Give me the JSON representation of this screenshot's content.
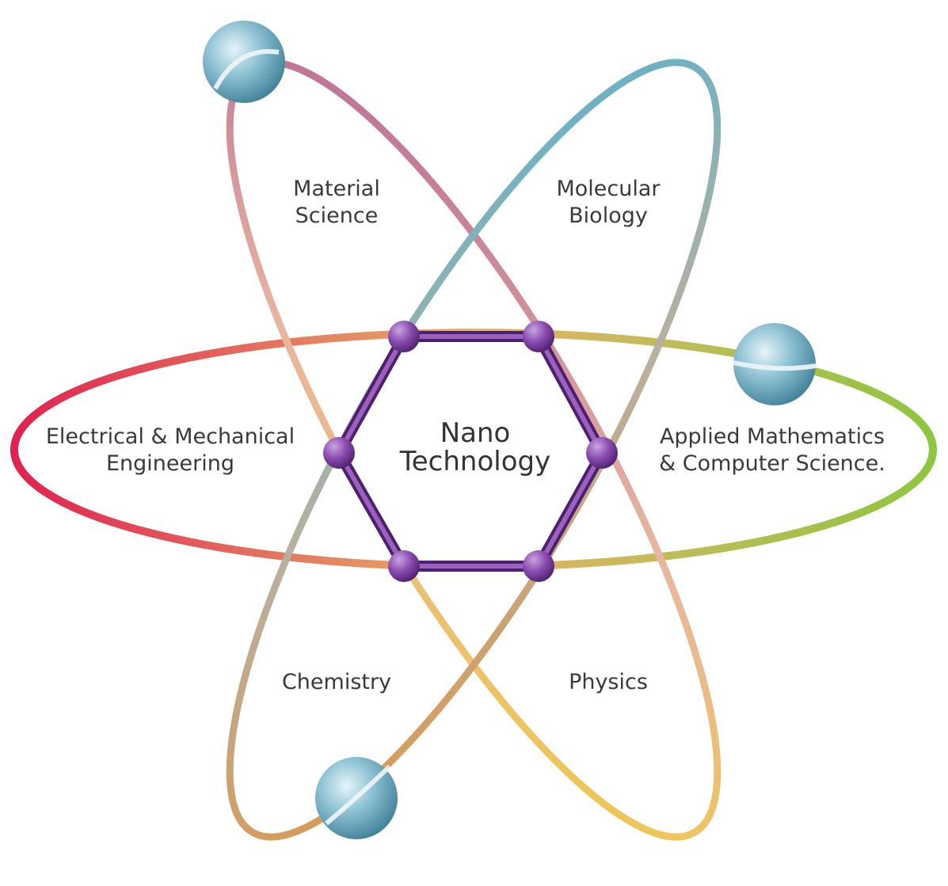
{
  "center": {
    "line1": "Nano",
    "line2": "Technology"
  },
  "fields": {
    "material_science": {
      "line1": "Material",
      "line2": "Science"
    },
    "molecular_biology": {
      "line1": "Molecular",
      "line2": "Biology"
    },
    "electrical_mechanical": {
      "line1": "Electrical & Mechanical",
      "line2": "Engineering"
    },
    "applied_math_cs": {
      "line1": "Applied Mathematics",
      "line2": "& Computer Science."
    },
    "chemistry": {
      "line1": "Chemistry"
    },
    "physics": {
      "line1": "Physics"
    }
  },
  "colors": {
    "hexagon": "#7a3f9e",
    "node": "#8b4db0",
    "electron": "#6aaac0",
    "orbit_horizontal_left": "#e0204f",
    "orbit_horizontal_right": "#8cc63f",
    "orbit_tl_br_top": "#9b3a8f",
    "orbit_tl_br_bottom": "#f4d21a",
    "orbit_tr_bl_top": "#2ab4e0",
    "orbit_tr_bl_bottom": "#f08a1e"
  }
}
